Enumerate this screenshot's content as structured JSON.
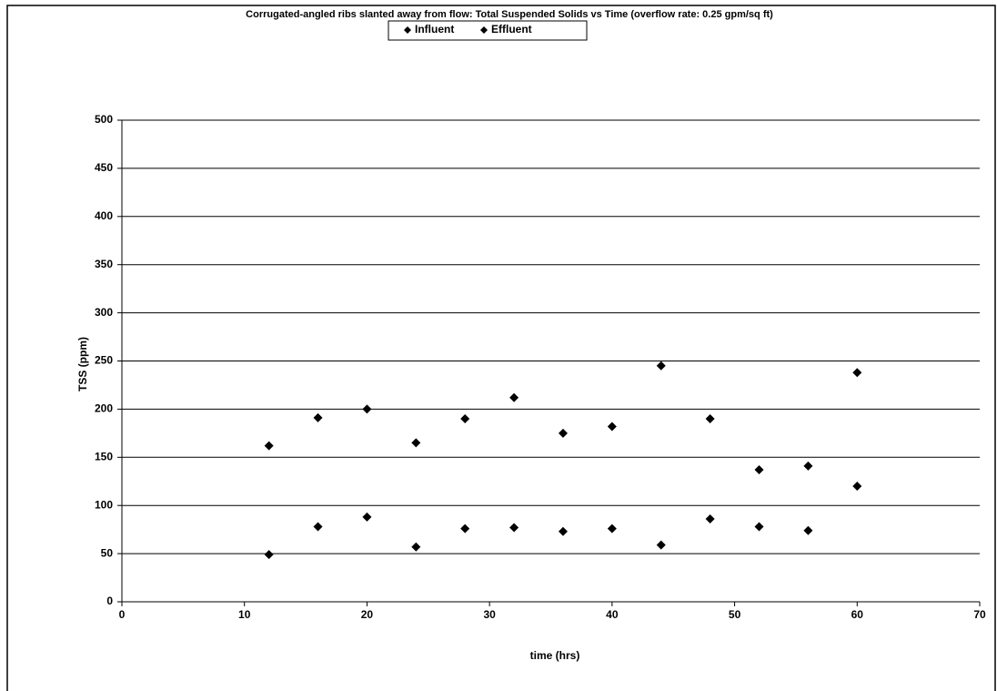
{
  "chart_data": {
    "type": "scatter",
    "title": "Corrugated-angled ribs slanted away from flow: Total Suspended Solids vs Time (overflow rate: 0.25 gpm/sq ft)",
    "x_label": "time (hrs)",
    "y_label": "TSS (ppm)",
    "x": [
      12,
      16,
      20,
      24,
      28,
      32,
      36,
      40,
      44,
      48,
      52,
      56,
      60
    ],
    "series": [
      {
        "name": "Influent",
        "color": "#000000",
        "values": [
          162,
          191,
          200,
          165,
          190,
          212,
          175,
          182,
          245,
          190,
          137,
          141,
          238
        ]
      },
      {
        "name": "Effluent",
        "color": "#000000",
        "values": [
          49,
          78,
          88,
          57,
          76,
          77,
          73,
          76,
          59,
          86,
          78,
          74,
          120
        ]
      }
    ],
    "xlim": [
      0,
      70
    ],
    "xticks": [
      0,
      10,
      20,
      30,
      40,
      50,
      60,
      70
    ],
    "ylim": [
      0,
      500
    ],
    "yticks": [
      0,
      50,
      100,
      150,
      200,
      250,
      300,
      350,
      400,
      450,
      500
    ],
    "grid": true,
    "legend": "top"
  }
}
